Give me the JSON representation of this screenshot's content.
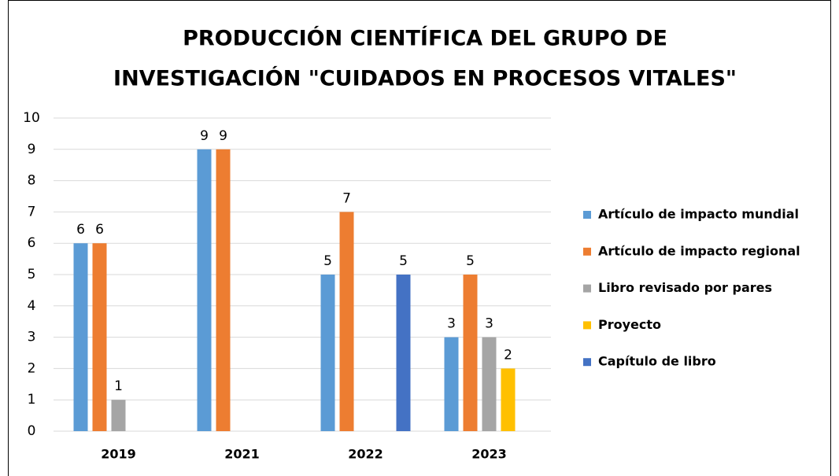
{
  "chart_data": {
    "type": "bar",
    "title": [
      "PRODUCCIÓN CIENTÍFICA DEL GRUPO DE",
      "INVESTIGACIÓN \"CUIDADOS EN PROCESOS VITALES\""
    ],
    "categories": [
      "2019",
      "2021",
      "2022",
      "2023"
    ],
    "series": [
      {
        "name": "Artículo de impacto mundial",
        "color": "#5b9bd5",
        "values": [
          6,
          9,
          5,
          3
        ]
      },
      {
        "name": "Artículo de impacto regional",
        "color": "#ed7d31",
        "values": [
          6,
          9,
          7,
          5
        ]
      },
      {
        "name": "Libro revisado por pares",
        "color": "#a5a5a5",
        "values": [
          1,
          null,
          null,
          3
        ]
      },
      {
        "name": "Proyecto",
        "color": "#ffc000",
        "values": [
          null,
          null,
          null,
          2
        ]
      },
      {
        "name": "Capítulo de libro",
        "color": "#4472c4",
        "values": [
          null,
          null,
          5,
          null
        ]
      }
    ],
    "ylim": [
      0,
      10
    ],
    "yticks": [
      0,
      1,
      2,
      3,
      4,
      5,
      6,
      7,
      8,
      9,
      10
    ],
    "grid": true,
    "legend": "right"
  }
}
